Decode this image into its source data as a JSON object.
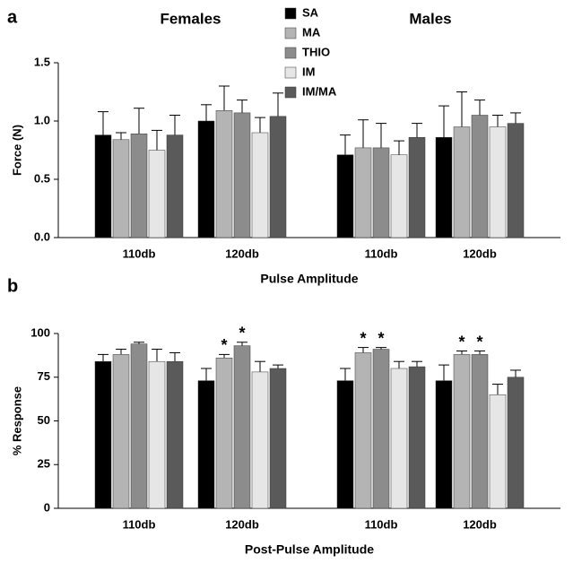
{
  "chart_data": [
    {
      "type": "bar",
      "label": "a",
      "groups": [
        "Females",
        "Males"
      ],
      "categories": [
        "110db",
        "120db",
        "110db",
        "120db"
      ],
      "x_label": "Pulse Amplitude",
      "y_label": "Force (N)",
      "ylim": [
        0,
        1.5
      ],
      "yticks": [
        {
          "value": 0,
          "label": "0.0"
        },
        0.5,
        {
          "value": 1,
          "label": "1.0"
        },
        1.5
      ],
      "legend": "top",
      "series": [
        {
          "name": "SA",
          "color": "#000000",
          "values": [
            0.88,
            1.0,
            0.71,
            0.86
          ],
          "errors": [
            0.2,
            0.14,
            0.17,
            0.27
          ]
        },
        {
          "name": "MA",
          "color": "#b4b4b4",
          "values": [
            0.84,
            1.09,
            0.77,
            0.95
          ],
          "errors": [
            0.06,
            0.21,
            0.24,
            0.3
          ]
        },
        {
          "name": "THIO",
          "color": "#8c8c8c",
          "values": [
            0.89,
            1.07,
            0.77,
            1.05
          ],
          "errors": [
            0.22,
            0.11,
            0.21,
            0.13
          ]
        },
        {
          "name": "IM",
          "color": "#e6e6e6",
          "values": [
            0.75,
            0.9,
            0.71,
            0.95
          ],
          "errors": [
            0.17,
            0.13,
            0.12,
            0.1
          ]
        },
        {
          "name": "IM/MA",
          "color": "#5a5a5a",
          "values": [
            0.88,
            1.04,
            0.86,
            0.98
          ],
          "errors": [
            0.17,
            0.2,
            0.12,
            0.09
          ]
        }
      ]
    },
    {
      "type": "bar",
      "label": "b",
      "categories": [
        "110db",
        "120db",
        "110db",
        "120db"
      ],
      "x_label": "Post-Pulse Amplitude",
      "y_label": "% Response",
      "ylim": [
        0,
        100
      ],
      "yticks": [
        0,
        25,
        50,
        75,
        100
      ],
      "series": [
        {
          "color": "#000000",
          "values": [
            84,
            73,
            73,
            73
          ],
          "errors": [
            4,
            7,
            7,
            9
          ]
        },
        {
          "color": "#b4b4b4",
          "values": [
            88,
            86,
            89,
            88
          ],
          "errors": [
            3,
            2,
            3,
            2
          ],
          "markers": [
            null,
            "*",
            "*",
            "*"
          ]
        },
        {
          "color": "#8c8c8c",
          "values": [
            94,
            93,
            91,
            88
          ],
          "errors": [
            1,
            2,
            1,
            2
          ],
          "markers": [
            null,
            "*",
            "*",
            "*"
          ]
        },
        {
          "color": "#e6e6e6",
          "values": [
            84,
            78,
            80,
            65
          ],
          "errors": [
            7,
            6,
            4,
            6
          ]
        },
        {
          "color": "#5a5a5a",
          "values": [
            84,
            80,
            81,
            75
          ],
          "errors": [
            5,
            2,
            3,
            4
          ]
        }
      ]
    }
  ]
}
